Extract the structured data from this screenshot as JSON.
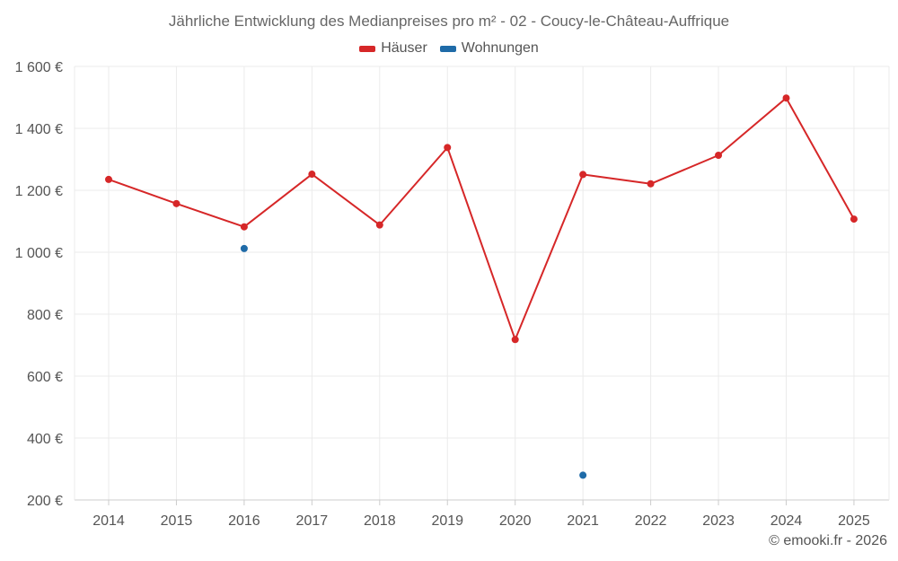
{
  "chart_data": {
    "type": "line",
    "title": "Jährliche Entwicklung des Medianpreises pro m² - 02 - Coucy-le-Château-Auffrique",
    "xlabel": "",
    "ylabel": "",
    "categories": [
      "2014",
      "2015",
      "2016",
      "2017",
      "2018",
      "2019",
      "2020",
      "2021",
      "2022",
      "2023",
      "2024",
      "2025"
    ],
    "ylim": [
      200,
      1600
    ],
    "yticks": [
      200,
      400,
      600,
      800,
      1000,
      1200,
      1400,
      1600
    ],
    "ytick_labels": [
      "200 €",
      "400 €",
      "600 €",
      "800 €",
      "1 000 €",
      "1 200 €",
      "1 400 €",
      "1 600 €"
    ],
    "grid": true,
    "legend_position": "top-center",
    "series": [
      {
        "name": "Häuser",
        "color": "#d62728",
        "values": [
          1235,
          1157,
          1082,
          1252,
          1088,
          1338,
          718,
          1251,
          1221,
          1313,
          1498,
          1107
        ]
      },
      {
        "name": "Wohnungen",
        "color": "#1f6ba8",
        "values": [
          null,
          null,
          1012,
          null,
          null,
          null,
          null,
          280,
          null,
          null,
          null,
          null
        ]
      }
    ]
  },
  "copyright": "© emooki.fr - 2026"
}
